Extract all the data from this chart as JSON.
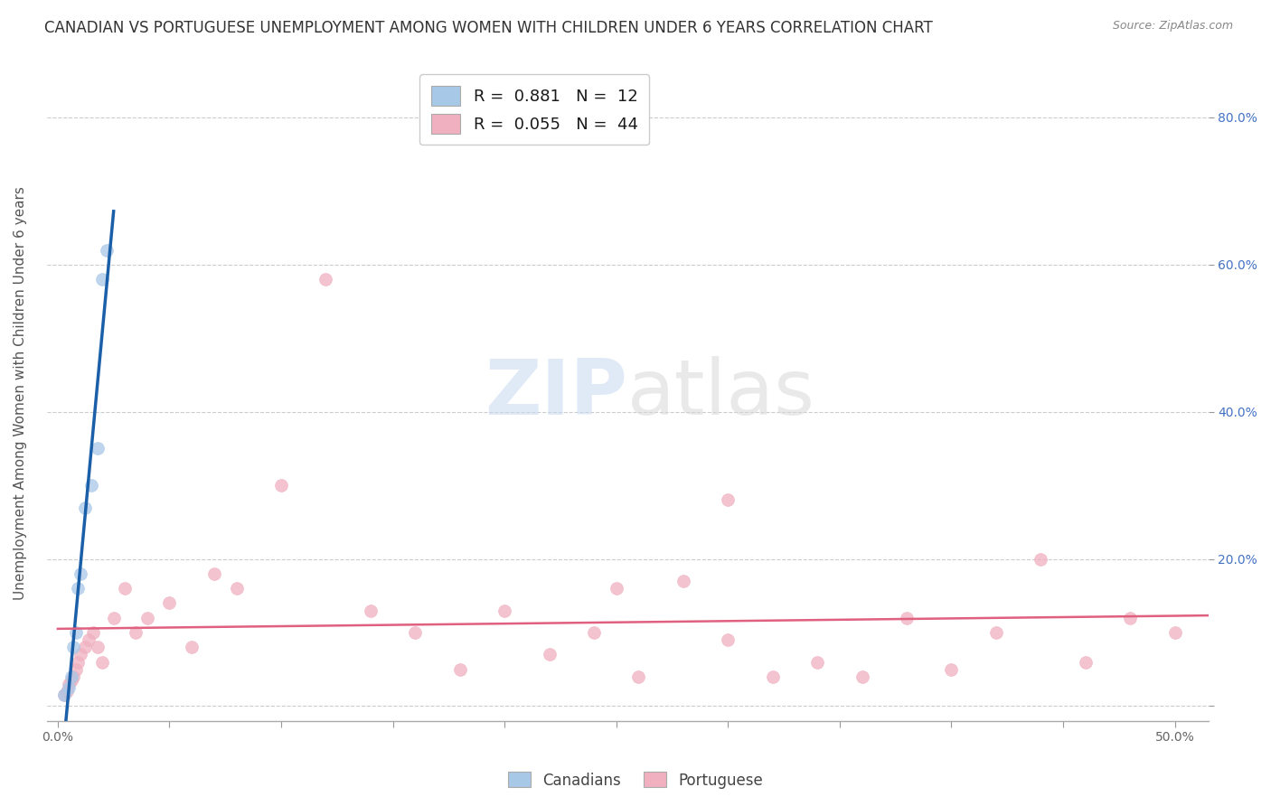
{
  "title": "CANADIAN VS PORTUGUESE UNEMPLOYMENT AMONG WOMEN WITH CHILDREN UNDER 6 YEARS CORRELATION CHART",
  "source": "Source: ZipAtlas.com",
  "ylabel": "Unemployment Among Women with Children Under 6 years",
  "xlim": [
    -0.005,
    0.515
  ],
  "ylim": [
    -0.02,
    0.87
  ],
  "ytick_values": [
    0.0,
    0.2,
    0.4,
    0.6,
    0.8
  ],
  "xtick_values": [
    0.0,
    0.05,
    0.1,
    0.15,
    0.2,
    0.25,
    0.3,
    0.35,
    0.4,
    0.45,
    0.5
  ],
  "canadian_x": [
    0.003,
    0.005,
    0.006,
    0.007,
    0.008,
    0.009,
    0.01,
    0.012,
    0.015,
    0.018,
    0.02,
    0.022
  ],
  "canadian_y": [
    0.015,
    0.025,
    0.04,
    0.08,
    0.1,
    0.16,
    0.18,
    0.27,
    0.3,
    0.35,
    0.58,
    0.62
  ],
  "portuguese_x": [
    0.003,
    0.004,
    0.005,
    0.006,
    0.007,
    0.008,
    0.009,
    0.01,
    0.012,
    0.014,
    0.016,
    0.018,
    0.02,
    0.025,
    0.03,
    0.035,
    0.04,
    0.05,
    0.06,
    0.07,
    0.08,
    0.1,
    0.12,
    0.14,
    0.16,
    0.18,
    0.2,
    0.22,
    0.24,
    0.26,
    0.28,
    0.3,
    0.32,
    0.34,
    0.36,
    0.38,
    0.4,
    0.42,
    0.44,
    0.46,
    0.48,
    0.5,
    0.3,
    0.25
  ],
  "portuguese_y": [
    0.015,
    0.02,
    0.03,
    0.035,
    0.04,
    0.05,
    0.06,
    0.07,
    0.08,
    0.09,
    0.1,
    0.08,
    0.06,
    0.12,
    0.16,
    0.1,
    0.12,
    0.14,
    0.08,
    0.18,
    0.16,
    0.3,
    0.58,
    0.13,
    0.1,
    0.05,
    0.13,
    0.07,
    0.1,
    0.04,
    0.17,
    0.28,
    0.04,
    0.06,
    0.04,
    0.12,
    0.05,
    0.1,
    0.2,
    0.06,
    0.12,
    0.1,
    0.09,
    0.16
  ],
  "canadian_color": "#a8c8e8",
  "portuguese_color": "#f0b0c0",
  "canadian_line_color": "#1a5fa8",
  "portuguese_line_color": "#e06080",
  "background_color": "#ffffff",
  "title_fontsize": 12,
  "axis_label_fontsize": 11,
  "tick_fontsize": 10,
  "legend_fontsize": 13,
  "dot_size": 100,
  "dot_alpha": 0.75
}
